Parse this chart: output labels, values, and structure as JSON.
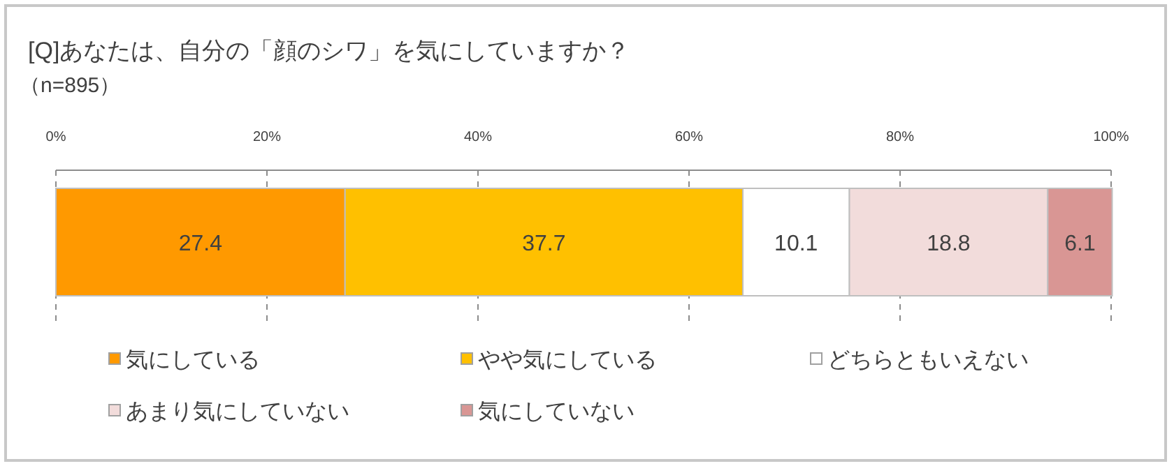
{
  "chart_data": {
    "type": "bar",
    "orientation": "horizontal",
    "stacked": true,
    "title": "[Q]あなたは、自分の「顔のシワ」を気にしていますか？",
    "subtitle": "（n=895）",
    "categories": [
      null
    ],
    "series": [
      {
        "name": "気にしている",
        "color": "#ff9900",
        "values": [
          27.4
        ]
      },
      {
        "name": "やや気にしている",
        "color": "#ffc000",
        "values": [
          37.7
        ]
      },
      {
        "name": "どちらともいえない",
        "color": "#ffffff",
        "values": [
          10.1
        ]
      },
      {
        "name": "あまり気にしていない",
        "color": "#f2dcdb",
        "values": [
          18.8
        ]
      },
      {
        "name": "気にしていない",
        "color": "#d99694",
        "values": [
          6.1
        ]
      }
    ],
    "xlim": [
      0,
      100
    ],
    "xticks": [
      {
        "value": 0,
        "label": "0%"
      },
      {
        "value": 20,
        "label": "20%"
      },
      {
        "value": 40,
        "label": "40%"
      },
      {
        "value": 60,
        "label": "60%"
      },
      {
        "value": 80,
        "label": "80%"
      },
      {
        "value": 100,
        "label": "100%"
      }
    ],
    "grid": "x",
    "legend": "bottom",
    "data_labels": true
  }
}
